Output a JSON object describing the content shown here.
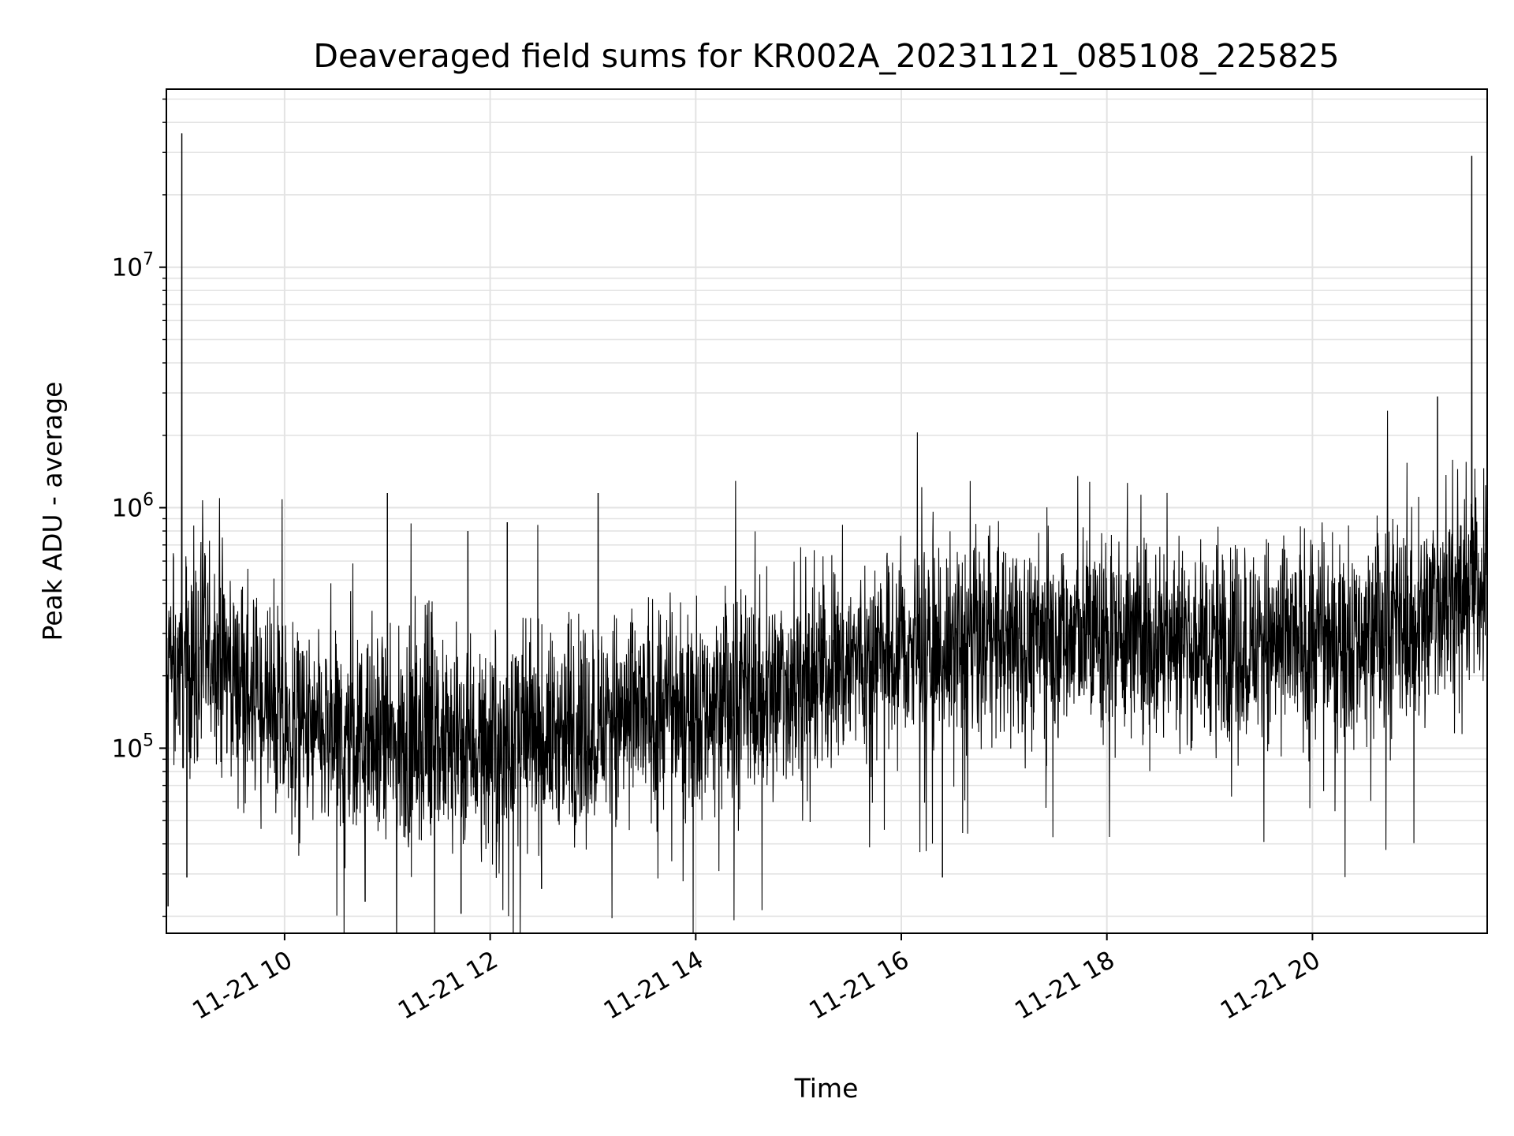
{
  "chart_data": {
    "type": "line",
    "title": "Deaveraged field sums for KR002A_20231121_085108_225825",
    "xlabel": "Time",
    "ylabel": "Peak ADU - average",
    "x_scale": "time",
    "y_scale": "log",
    "xlim": [
      "2023-11-21 08:51",
      "2023-11-21 21:42"
    ],
    "ylim": [
      17000,
      55000000
    ],
    "x_ticks": [
      "11-21 10",
      "11-21 12",
      "11-21 14",
      "11-21 16",
      "11-21 18",
      "11-21 20"
    ],
    "y_ticks": [
      {
        "mantissa": "10",
        "exponent": "5",
        "value": 100000
      },
      {
        "mantissa": "10",
        "exponent": "6",
        "value": 1000000
      },
      {
        "mantissa": "10",
        "exponent": "7",
        "value": 10000000
      }
    ],
    "grid": true,
    "line_color": "#000000",
    "grid_color": "#e3e3e3",
    "series": [
      {
        "x": [
          "2023-11-21 08:51",
          "2023-11-21 09:00",
          "2023-11-21 09:20",
          "2023-11-21 09:40",
          "2023-11-21 10:00",
          "2023-11-21 10:30",
          "2023-11-21 11:00",
          "2023-11-21 11:30",
          "2023-11-21 12:00",
          "2023-11-21 12:30",
          "2023-11-21 13:00",
          "2023-11-21 13:30",
          "2023-11-21 14:00",
          "2023-11-21 14:30",
          "2023-11-21 15:00",
          "2023-11-21 15:30",
          "2023-11-21 16:00",
          "2023-11-21 16:30",
          "2023-11-21 17:00",
          "2023-11-21 17:30",
          "2023-11-21 18:00",
          "2023-11-21 18:30",
          "2023-11-21 19:00",
          "2023-11-21 19:30",
          "2023-11-21 20:00",
          "2023-11-21 20:30",
          "2023-11-21 21:00",
          "2023-11-21 21:15",
          "2023-11-21 21:30",
          "2023-11-21 21:42"
        ],
        "values": [
          200000,
          220000,
          250000,
          170000,
          120000,
          105000,
          100000,
          100000,
          105000,
          110000,
          125000,
          140000,
          150000,
          160000,
          190000,
          230000,
          250000,
          270000,
          280000,
          290000,
          300000,
          290000,
          280000,
          270000,
          280000,
          300000,
          320000,
          420000,
          470000,
          500000
        ]
      }
    ],
    "spikes": [
      {
        "x": "2023-11-21 09:00",
        "value": 36000000
      },
      {
        "x": "2023-11-21 11:00",
        "value": 1150000
      },
      {
        "x": "2023-11-21 11:47",
        "value": 800000
      },
      {
        "x": "2023-11-21 12:10",
        "value": 870000
      },
      {
        "x": "2023-11-21 13:03",
        "value": 1150000
      },
      {
        "x": "2023-11-21 21:13",
        "value": 2900000
      },
      {
        "x": "2023-11-21 21:33",
        "value": 29000000
      }
    ],
    "dips": [
      {
        "x": "2023-11-21 08:52",
        "value": 22000
      },
      {
        "x": "2023-11-21 09:03",
        "value": 29000
      },
      {
        "x": "2023-11-21 10:47",
        "value": 23000
      },
      {
        "x": "2023-11-21 11:43",
        "value": 20500
      },
      {
        "x": "2023-11-21 12:30",
        "value": 26000
      },
      {
        "x": "2023-11-21 16:24",
        "value": 29000
      }
    ]
  }
}
